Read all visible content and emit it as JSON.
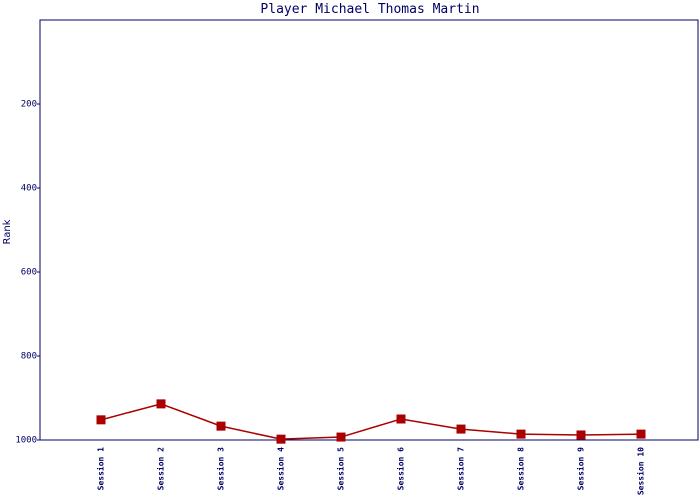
{
  "chart_data": {
    "type": "line",
    "title": "Player Michael Thomas Martin",
    "y_label": "Rank",
    "categories": [
      "Session 1",
      "Session 2",
      "Session 3",
      "Session 4",
      "Session 5",
      "Session 6",
      "Session 7",
      "Session 8",
      "Session 9",
      "Session 10"
    ],
    "series": [
      {
        "name": "Rank",
        "color": "#aa0000",
        "values": [
          952,
          914,
          967,
          998,
          993,
          950,
          974,
          986,
          988,
          986
        ]
      }
    ],
    "ylim": [
      1000,
      0
    ],
    "yticks": [
      200,
      400,
      600,
      800,
      1000
    ]
  }
}
